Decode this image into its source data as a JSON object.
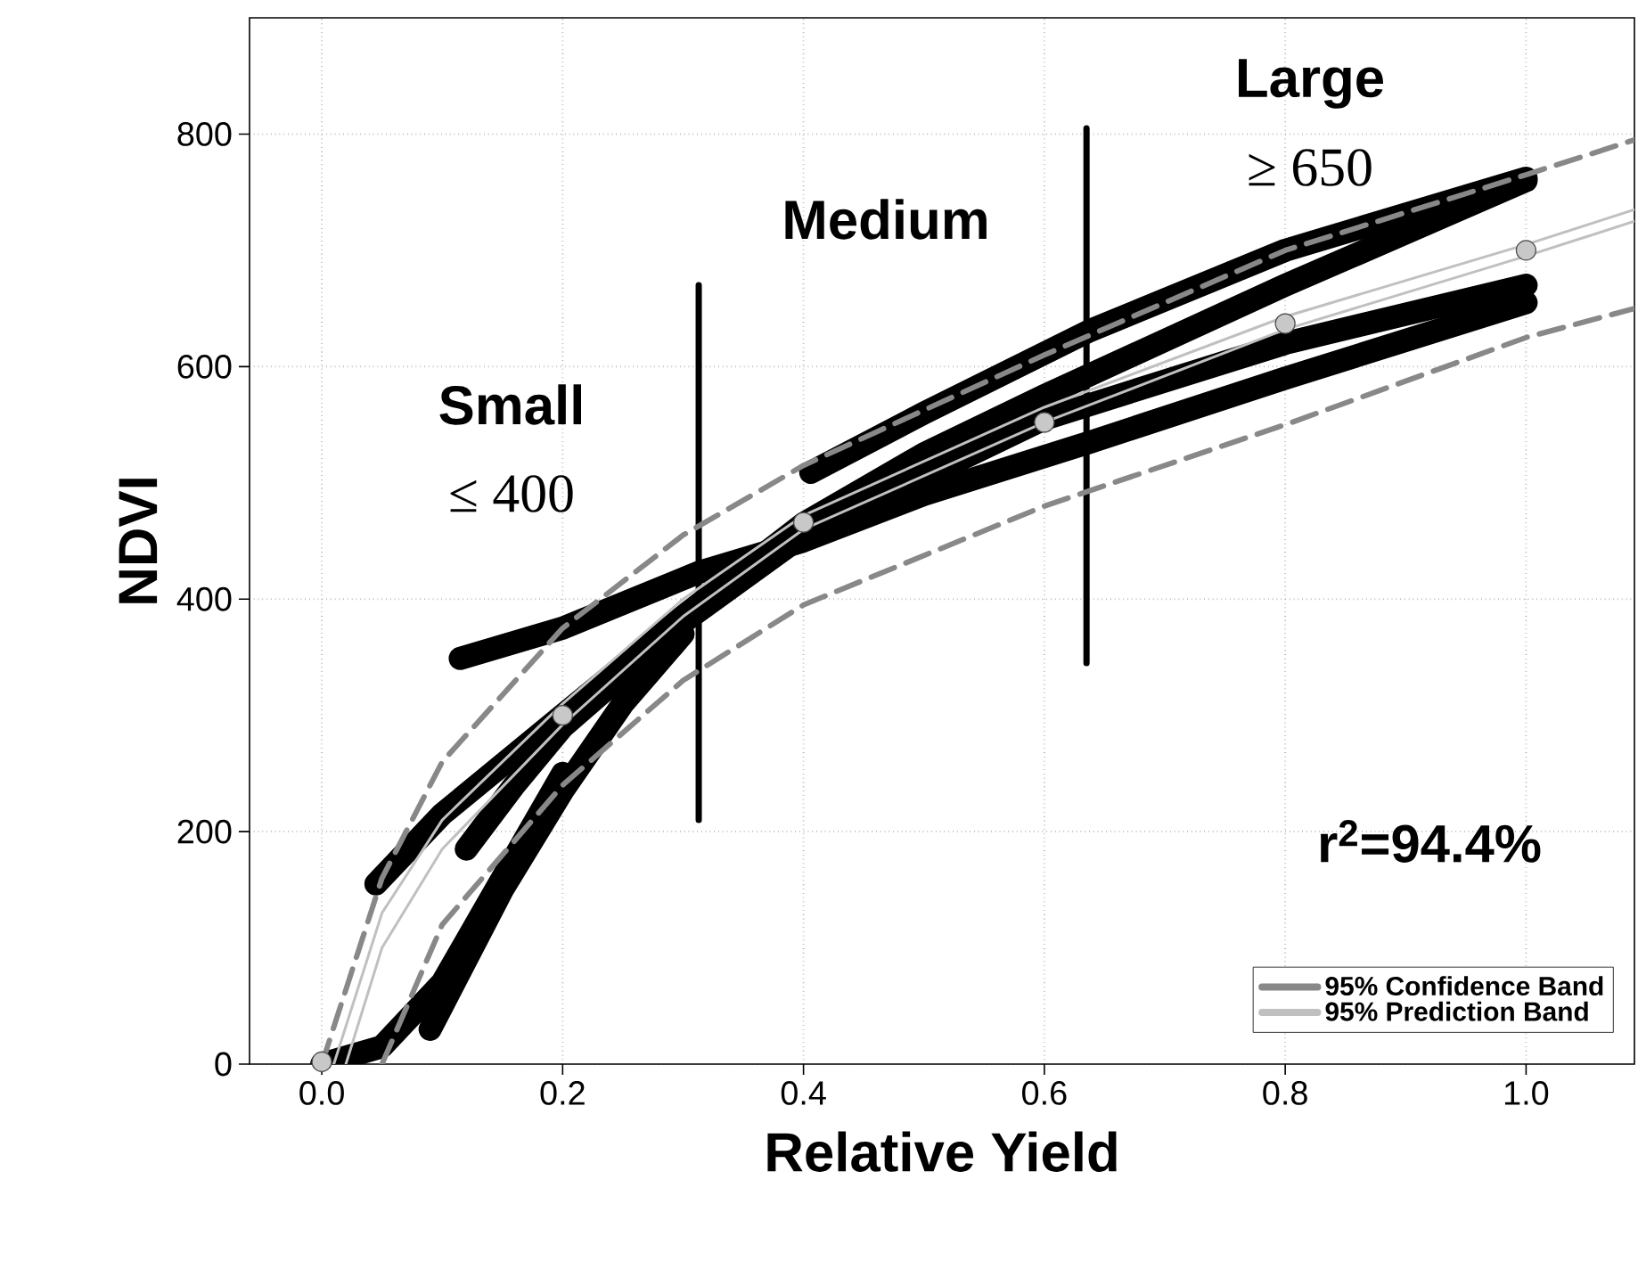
{
  "chart_data": {
    "type": "line",
    "xlabel": "Relative Yield",
    "ylabel": "NDVI",
    "xlim": [
      -0.06,
      1.09
    ],
    "ylim": [
      0,
      900
    ],
    "xticks": [
      {
        "value": 0,
        "label": "0.0"
      },
      {
        "value": 0.2,
        "label": "0.2"
      },
      {
        "value": 0.4,
        "label": "0.4"
      },
      {
        "value": 0.6,
        "label": "0.6"
      },
      {
        "value": 0.8,
        "label": "0.8"
      },
      {
        "value": 1.0,
        "label": "1.0"
      }
    ],
    "yticks": [
      0,
      200,
      400,
      600,
      800
    ],
    "grid": true,
    "legend": "bottom right",
    "line_style": "solid",
    "marker": "none",
    "series": [
      {
        "color": "#000000",
        "x": [
          0.115,
          0.2,
          0.313,
          0.4,
          0.5,
          0.638,
          0.8,
          1.0
        ],
        "values": [
          349,
          375,
          423,
          450,
          490,
          535,
          590,
          655
        ]
      },
      {
        "color": "#000000",
        "x": [
          0.045,
          0.1,
          0.2,
          0.3,
          0.4,
          0.5,
          0.6,
          0.8,
          1.0
        ],
        "values": [
          155,
          215,
          300,
          385,
          465,
          525,
          575,
          670,
          760
        ]
      },
      {
        "color": "#000000",
        "x": [
          0.12,
          0.16,
          0.2,
          0.3,
          0.4,
          0.6,
          0.8,
          1.0
        ],
        "values": [
          185,
          240,
          290,
          380,
          455,
          555,
          620,
          670
        ]
      },
      {
        "color": "#000000",
        "x": [
          0.09,
          0.12,
          0.15,
          0.2,
          0.25,
          0.3
        ],
        "values": [
          30,
          90,
          150,
          235,
          310,
          370
        ]
      },
      {
        "color": "#000000",
        "x": [
          0.0,
          0.05,
          0.1,
          0.15,
          0.2
        ],
        "values": [
          0,
          15,
          70,
          160,
          250
        ]
      },
      {
        "color": "#000000",
        "x": [
          0.406,
          0.5,
          0.638,
          0.8,
          1.0
        ],
        "values": [
          509,
          560,
          631,
          700,
          762
        ]
      },
      {
        "color": "#000000",
        "x": [
          0.313,
          0.313
        ],
        "values": [
          210,
          670
        ]
      },
      {
        "color": "#000000",
        "x": [
          0.635,
          0.635
        ],
        "values": [
          345,
          805
        ]
      },
      {
        "name": "95% Confidence Band",
        "color": "#888888",
        "line_style": "dashed",
        "x": [
          0.0,
          0.05,
          0.1,
          0.2,
          0.3,
          0.4,
          0.6,
          0.8,
          1.0,
          1.09
        ],
        "values": [
          0,
          160,
          260,
          375,
          455,
          515,
          610,
          700,
          765,
          795
        ]
      },
      {
        "color": "#888888",
        "line_style": "dashed",
        "x": [
          0.05,
          0.1,
          0.2,
          0.3,
          0.4,
          0.6,
          0.8,
          1.0,
          1.09
        ],
        "values": [
          0,
          120,
          240,
          330,
          395,
          480,
          550,
          625,
          650
        ]
      },
      {
        "name": "95% Prediction Band",
        "color": "#c0c0c0",
        "x": [
          0.01,
          0.05,
          0.1,
          0.2,
          0.3,
          0.4,
          0.6,
          0.8,
          1.0,
          1.09
        ],
        "values": [
          0,
          130,
          210,
          310,
          400,
          472,
          565,
          643,
          705,
          735
        ]
      },
      {
        "color": "#c0c0c0",
        "x": [
          0.02,
          0.05,
          0.1,
          0.2,
          0.3,
          0.4,
          0.6,
          0.8,
          1.0,
          1.09
        ],
        "values": [
          0,
          100,
          185,
          292,
          385,
          460,
          552,
          632,
          695,
          725
        ]
      },
      {
        "type": "scatter",
        "marker": "circle",
        "color": "#c8c8c8",
        "x": [
          0.0,
          0.2,
          0.4,
          0.6,
          0.8,
          1.0
        ],
        "values": [
          2,
          300,
          466,
          552,
          637,
          700
        ]
      }
    ],
    "annotations": [
      "**Small**",
      "≤ 400",
      "**Medium**",
      "**Large**",
      "≥ 650",
      "**r$^{2}$=94.4%**"
    ]
  }
}
